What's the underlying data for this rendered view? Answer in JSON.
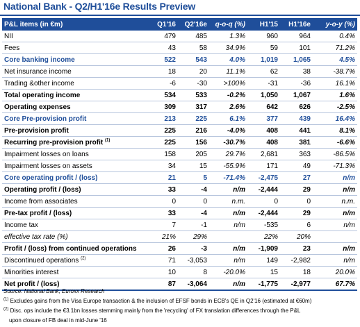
{
  "title": "National Bank - Q2/H1'16e Results Preview",
  "table": {
    "headers": [
      "P&L items (in €m)",
      "Q1'16",
      "Q2'16e",
      "q-o-q (%)",
      "H1'15",
      "H1'16e",
      "y-o-y (%)"
    ],
    "rows": [
      {
        "label": "NII",
        "q1": "479",
        "q2": "485",
        "qoq": "1.3%",
        "h115": "960",
        "h116": "964",
        "yoy": "0.4%",
        "style": "normal"
      },
      {
        "label": "Fees",
        "q1": "43",
        "q2": "58",
        "qoq": "34.9%",
        "h115": "59",
        "h116": "101",
        "yoy": "71.2%",
        "style": "normal"
      },
      {
        "label": "Core banking income",
        "q1": "522",
        "q2": "543",
        "qoq": "4.0%",
        "h115": "1,019",
        "h116": "1,065",
        "yoy": "4.5%",
        "style": "blue"
      },
      {
        "label": "Net insurance income",
        "q1": "18",
        "q2": "20",
        "qoq": "11.1%",
        "h115": "62",
        "h116": "38",
        "yoy": "-38.7%",
        "style": "normal"
      },
      {
        "label": "Trading &other income",
        "q1": "-6",
        "q2": "-30",
        "qoq": ">100%",
        "h115": "-31",
        "h116": "-36",
        "yoy": "16.1%",
        "style": "normal"
      },
      {
        "label": "Total operating income",
        "q1": "534",
        "q2": "533",
        "qoq": "-0.2%",
        "h115": "1,050",
        "h116": "1,067",
        "yoy": "1.6%",
        "style": "bold"
      },
      {
        "label": "Operating expenses",
        "q1": "309",
        "q2": "317",
        "qoq": "2.6%",
        "h115": "642",
        "h116": "626",
        "yoy": "-2.5%",
        "style": "bold"
      },
      {
        "label": "Core Pre-provision profit",
        "q1": "213",
        "q2": "225",
        "qoq": "6.1%",
        "h115": "377",
        "h116": "439",
        "yoy": "16.4%",
        "style": "blue"
      },
      {
        "label": "Pre-provision profit",
        "q1": "225",
        "q2": "216",
        "qoq": "-4.0%",
        "h115": "408",
        "h116": "441",
        "yoy": "8.1%",
        "style": "bold"
      },
      {
        "label": "Recurring pre-provision profit",
        "sup": "(1)",
        "q1": "225",
        "q2": "156",
        "qoq": "-30.7%",
        "h115": "408",
        "h116": "381",
        "yoy": "-6.6%",
        "style": "bold"
      },
      {
        "label": "Impairment losses on loans",
        "q1": "158",
        "q2": "205",
        "qoq": "29.7%",
        "h115": "2,681",
        "h116": "363",
        "yoy": "-86.5%",
        "style": "normal"
      },
      {
        "label": "Impairment losses on assets",
        "q1": "34",
        "q2": "15",
        "qoq": "-55.9%",
        "h115": "171",
        "h116": "49",
        "yoy": "-71.3%",
        "style": "normal"
      },
      {
        "label": "Core operating profit / (loss)",
        "q1": "21",
        "q2": "5",
        "qoq": "-71.4%",
        "h115": "-2,475",
        "h116": "27",
        "yoy": "n/m",
        "style": "blue"
      },
      {
        "label": "Operating profit / (loss)",
        "q1": "33",
        "q2": "-4",
        "qoq": "n/m",
        "h115": "-2,444",
        "h116": "29",
        "yoy": "n/m",
        "style": "bold"
      },
      {
        "label": "Income from associates",
        "q1": "0",
        "q2": "0",
        "qoq": "n.m.",
        "h115": "0",
        "h116": "0",
        "yoy": "n.m.",
        "style": "normal"
      },
      {
        "label": "Pre-tax profit / (loss)",
        "q1": "33",
        "q2": "-4",
        "qoq": "n/m",
        "h115": "-2,444",
        "h116": "29",
        "yoy": "n/m",
        "style": "bold"
      },
      {
        "label": "Income tax",
        "q1": "7",
        "q2": "-1",
        "qoq": "n/m",
        "h115": "-535",
        "h116": "6",
        "yoy": "n/m",
        "style": "normal"
      },
      {
        "label": "effective tax rate (%)",
        "q1": "21%",
        "q2": "29%",
        "qoq": "",
        "h115": "22%",
        "h116": "20%",
        "yoy": "",
        "style": "italic"
      },
      {
        "label": "Profit / (loss) from continued operations",
        "q1": "26",
        "q2": "-3",
        "qoq": "n/m",
        "h115": "-1,909",
        "h116": "23",
        "yoy": "n/m",
        "style": "bold"
      },
      {
        "label": "Discontinued operations",
        "sup": "(2)",
        "q1": "71",
        "q2": "-3,053",
        "qoq": "n/m",
        "h115": "149",
        "h116": "-2,982",
        "yoy": "n/m",
        "style": "normal"
      },
      {
        "label": "Minorities interest",
        "q1": "10",
        "q2": "8",
        "qoq": "-20.0%",
        "h115": "15",
        "h116": "18",
        "yoy": "20.0%",
        "style": "normal"
      },
      {
        "label": "Net profit / (loss)",
        "q1": "87",
        "q2": "-3,064",
        "qoq": "n/m",
        "h115": "-1,775",
        "h116": "-2,977",
        "yoy": "67.7%",
        "style": "bold last"
      }
    ]
  },
  "source": "Source: National Bank, Euroxx Research",
  "notes": {
    "n1_mark": "(1)",
    "n1": "Excludes gains from the Visa Europe transaction & the inclusion of EFSF bonds in ECB's QE in Q2'16 (estimated at €60m)",
    "n2_mark": "(2)",
    "n2": "Disc. ops include the €3.1bn losses stemming mainly from the 'recycling' of FX translation differences through the P&L",
    "n3": "upon closure of FB deal in mid-June '16"
  },
  "colors": {
    "brand": "#1f4e9a",
    "row_rule": "#b7c5dd"
  }
}
